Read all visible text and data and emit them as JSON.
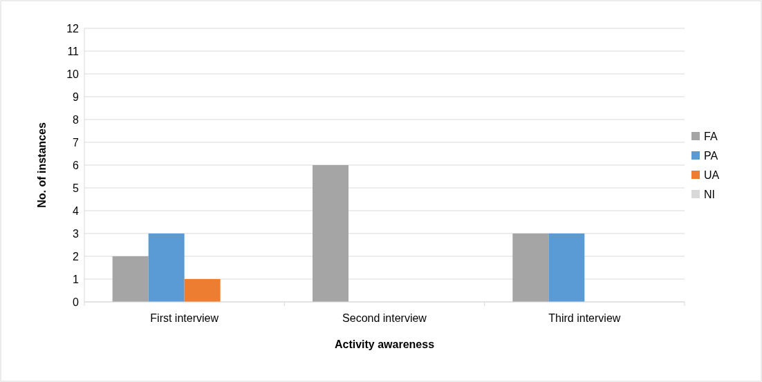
{
  "chart_data": {
    "type": "bar",
    "xlabel": "Activity awareness",
    "ylabel": "No. of instances",
    "categories": [
      "First interview",
      "Second interview",
      "Third interview"
    ],
    "series": [
      {
        "name": "FA",
        "color": "#a5a5a5",
        "values": [
          2,
          6,
          3
        ]
      },
      {
        "name": "PA",
        "color": "#5b9bd5",
        "values": [
          3,
          0,
          3
        ]
      },
      {
        "name": "UA",
        "color": "#ed7d31",
        "values": [
          1,
          0,
          0
        ]
      },
      {
        "name": "NI",
        "color": "#d9d9d9",
        "values": [
          0,
          0,
          0
        ]
      }
    ],
    "ylim": [
      0,
      12
    ],
    "yticks": [
      0,
      1,
      2,
      3,
      4,
      5,
      6,
      7,
      8,
      9,
      10,
      11,
      12
    ],
    "grid": "y",
    "legend": "right"
  }
}
